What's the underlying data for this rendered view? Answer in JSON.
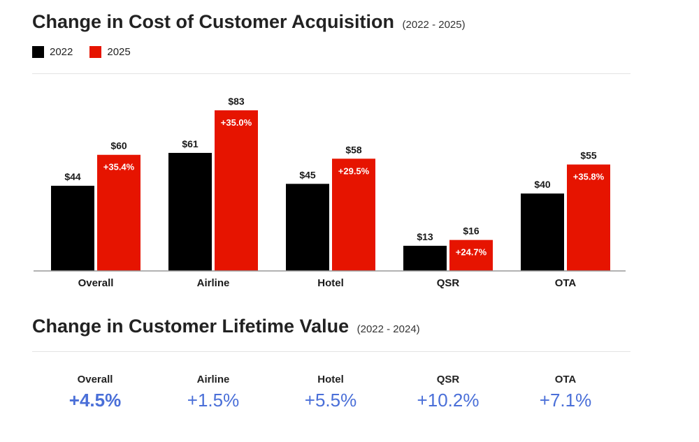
{
  "section1": {
    "title": "Change in Cost of Customer Acquisition",
    "subtitle": "(2022 - 2025)"
  },
  "section2": {
    "title": "Change in Customer Lifetime Value",
    "subtitle": "(2022 - 2024)",
    "items": [
      {
        "label": "Overall",
        "value": "+4.5%"
      },
      {
        "label": "Airline",
        "value": "+1.5%"
      },
      {
        "label": "Hotel",
        "value": "+5.5%"
      },
      {
        "label": "QSR",
        "value": "+10.2%"
      },
      {
        "label": "OTA",
        "value": "+7.1%"
      }
    ]
  },
  "colors": {
    "series_2022": "#000000",
    "series_2025": "#e61400",
    "ltv_value": "#4a6fd8"
  },
  "chart_data": {
    "type": "bar",
    "categories": [
      "Overall",
      "Airline",
      "Hotel",
      "QSR",
      "OTA"
    ],
    "series": [
      {
        "name": "2022",
        "values": [
          44,
          61,
          45,
          13,
          40
        ],
        "labels": [
          "$44",
          "$61",
          "$45",
          "$13",
          "$40"
        ]
      },
      {
        "name": "2025",
        "values": [
          60,
          83,
          58,
          16,
          55
        ],
        "labels": [
          "$60",
          "$83",
          "$58",
          "$16",
          "$55"
        ]
      }
    ],
    "change_labels": [
      "+35.4%",
      "+35.0%",
      "+29.5%",
      "+24.7%",
      "+35.8%"
    ],
    "ylim": [
      0,
      83
    ],
    "grid": false,
    "legend_position": "top-left"
  }
}
